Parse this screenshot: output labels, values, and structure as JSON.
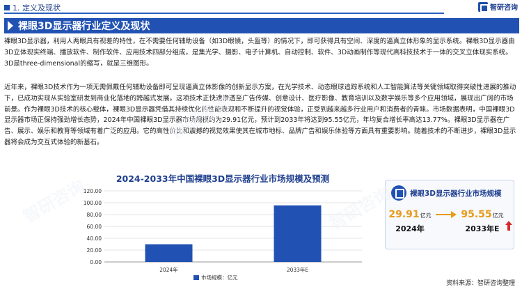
{
  "header": {
    "section": "1. 定义及现状",
    "brand": "智研咨询"
  },
  "title": "裸眼3D显示器行业定义及现状",
  "paragraphs": [
    "裸眼3D显示器，利用人两眼具有视差的特性，在不需要任何辅助设备（如3D眼镜，头盔等）的情况下，即可获得具有空间、深度的逼真立体形象的显示系统。裸眼3D显示器由3D立体现实终端、播放软件、制作软件、应用技术四部分组成，是集光学、摄影、电子计算机、自动控制、软件、3D动画制作等现代高科技技术于一体的交叉立体现实系统。3D是three-dimensional的缩写，就是三维图形。",
    "近年来，裸眼3D技术作为一项无需佩戴任何辅助设备即可呈现逼真立体影像的创新显示方案，在光学技术、动态眼球追踪系统和人工智能算法等关键领域取得突破性进展的推动下，已成功实现从实验室研发到商业化落地的跨越式发展。这项技术正快速渗透至广告传媒、创意设计、医疗影像、教育培训以及数字娱乐等多个应用领域，展现出广阔的市场前景。作为裸眼3D技术的核心载体，裸眼3D显示器凭借其持续优化的性能表现和不断提升的视觉体验，正受到越来越多行业用户和消费者的青睐。市场数据表明，中国裸眼3D显示器市场正保持强劲增长态势，2024年中国裸眼3D显示器市场规模约为29.91亿元，预计到2033年将达到95.55亿元，年均复合增长率高达13.77%。裸眼3D显示器在广告、展示、娱乐和教育等领域有着广泛的应用。它的高性价比和震撼的视觉效果使其在城市地标、品牌广告和娱乐体验等方面具有重要影响。随着技术的不断进步，裸眼3D显示器将会成为交互式体验的新基石。"
  ],
  "chart_data": {
    "type": "bar",
    "title": "2024-2033年中国裸眼3D显示器行业市场规模及预测",
    "categories": [
      "2024年",
      "2033年E"
    ],
    "series": [
      {
        "name": "市场规模：亿元",
        "values": [
          29.91,
          95.55
        ]
      }
    ],
    "ylim": [
      0,
      120
    ],
    "yticks": [
      "0.00",
      "20.00",
      "40.00",
      "60.00",
      "80.00",
      "100.00",
      "120.00"
    ],
    "ytick_values": [
      0,
      20,
      40,
      60,
      80,
      100,
      120
    ],
    "grid": true,
    "legend": "bottom",
    "colors": {
      "bar": "#2152b3"
    }
  },
  "side_card": {
    "title": "裸眼3D显示器行业市场规模",
    "left": {
      "value": "29.91",
      "unit": "亿元",
      "year": "2024年"
    },
    "right": {
      "value": "95.55",
      "unit": "亿元",
      "year": "2033年E"
    }
  },
  "source": "资料来源：智研咨询整理",
  "colors": {
    "accent": "#2152b3",
    "highlight": "#e89a1a",
    "up": "#d62b2b"
  }
}
